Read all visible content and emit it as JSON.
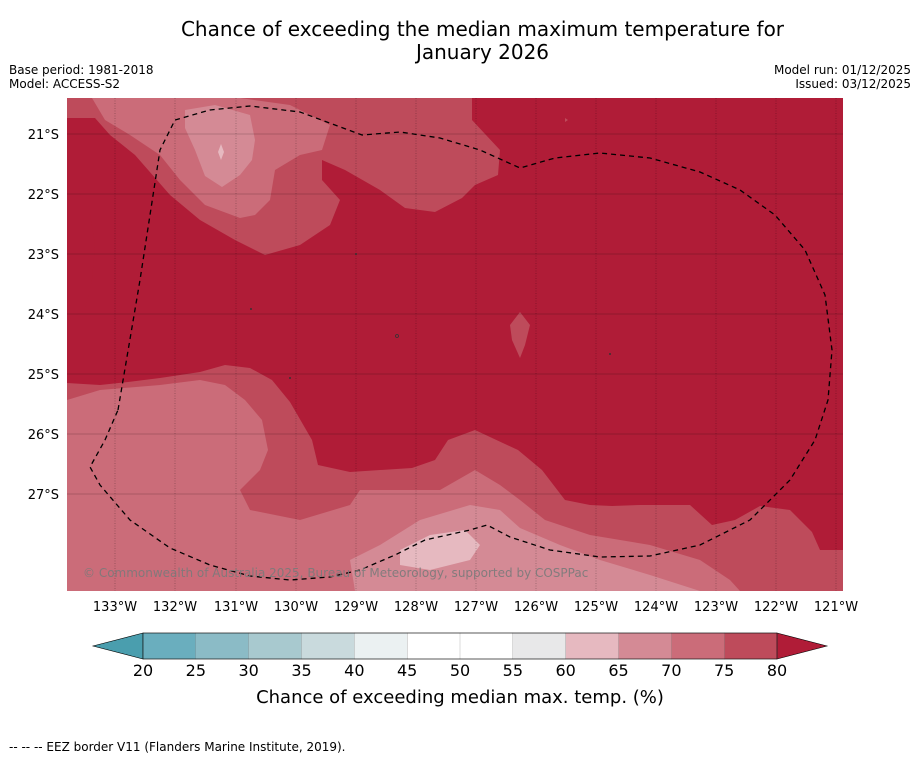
{
  "title_line1": "Chance of exceeding the median maximum temperature for",
  "title_line2": "January 2026",
  "base_period": "Base period: 1981-2018",
  "model": "Model: ACCESS-S2",
  "model_run": "Model run: 01/12/2025",
  "issued": "Issued: 03/12/2025",
  "copyright": "© Commonwealth of Australia 2025, Bureau of Meteorology, supported by COSPPac",
  "colorbar_label": "Chance of exceeding median max. temp. (%)",
  "footer": "-- -- -- EEZ border V11 (Flanders Marine Institute, 2019).",
  "map": {
    "lat_labels": [
      "21°S",
      "22°S",
      "23°S",
      "24°S",
      "25°S",
      "26°S",
      "27°S"
    ],
    "lon_labels": [
      "133°W",
      "132°W",
      "131°W",
      "130°W",
      "129°W",
      "128°W",
      "127°W",
      "126°W",
      "125°W",
      "124°W",
      "123°W",
      "122°W",
      "121°W"
    ]
  },
  "colorbar": {
    "ticks": [
      "20",
      "25",
      "30",
      "35",
      "40",
      "45",
      "50",
      "55",
      "60",
      "65",
      "70",
      "75",
      "80"
    ],
    "colors": [
      "#6aaebe",
      "#8bbbc6",
      "#a8c9cf",
      "#c9dadd",
      "#ebf1f2",
      "#ffffff",
      "#ffffff",
      "#e8e8e9",
      "#e6b9c0",
      "#d48a95",
      "#cb6c79",
      "#be4b5b"
    ],
    "under_color": "#4a9eae",
    "over_color": "#b01c37"
  }
}
